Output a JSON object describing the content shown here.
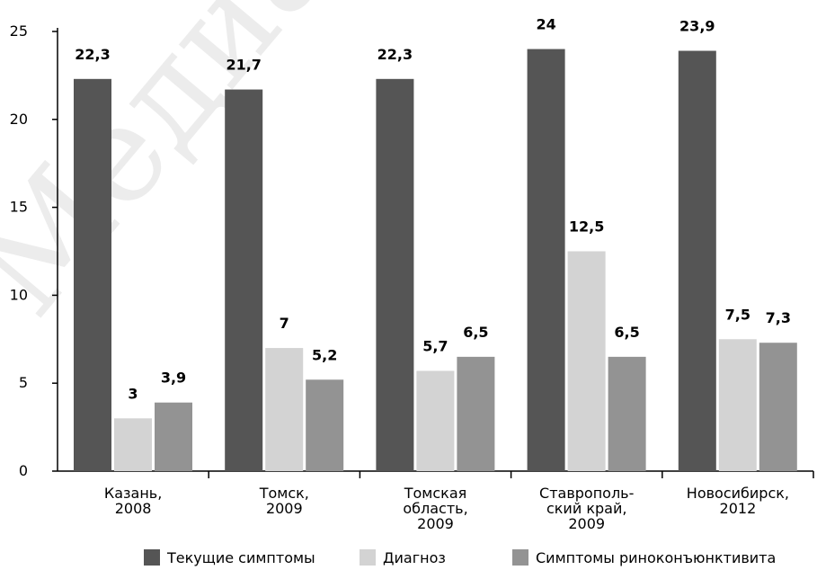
{
  "chart_data": {
    "type": "bar",
    "categories": [
      [
        "Казань,",
        "2008"
      ],
      [
        "Томск,",
        "2009"
      ],
      [
        "Томская",
        "область,",
        "2009"
      ],
      [
        "Ставрополь-",
        "ский край,",
        "2009"
      ],
      [
        "Новосибирск,",
        "2012"
      ]
    ],
    "series": [
      {
        "name": "Текущие симптомы",
        "color": "#555555",
        "values": [
          22.3,
          21.7,
          22.3,
          24,
          23.9
        ],
        "labels": [
          "22,3",
          "21,7",
          "22,3",
          "24",
          "23,9"
        ]
      },
      {
        "name": "Диагноз",
        "color": "#d3d3d3",
        "values": [
          3,
          7,
          null,
          12.5,
          7.5
        ],
        "labels": [
          "3",
          "7",
          "",
          "12,5",
          "7,5"
        ]
      },
      {
        "name": "Симптомы риноконъюнктивита",
        "color": "#939393",
        "values": [
          3.9,
          5.2,
          5.7,
          6.5,
          7.3
        ],
        "labels": [
          "3,9",
          "5,2",
          "5,7",
          "6,5",
          "7,3"
        ]
      }
    ],
    "ylim": [
      0,
      25
    ],
    "yticks": [
      "0",
      "5",
      "10",
      "15",
      "20",
      "25"
    ],
    "title": "",
    "xlabel": "",
    "ylabel": "",
    "legend_position": "bottom",
    "grid": false
  },
  "watermark_text": "Медиа"
}
